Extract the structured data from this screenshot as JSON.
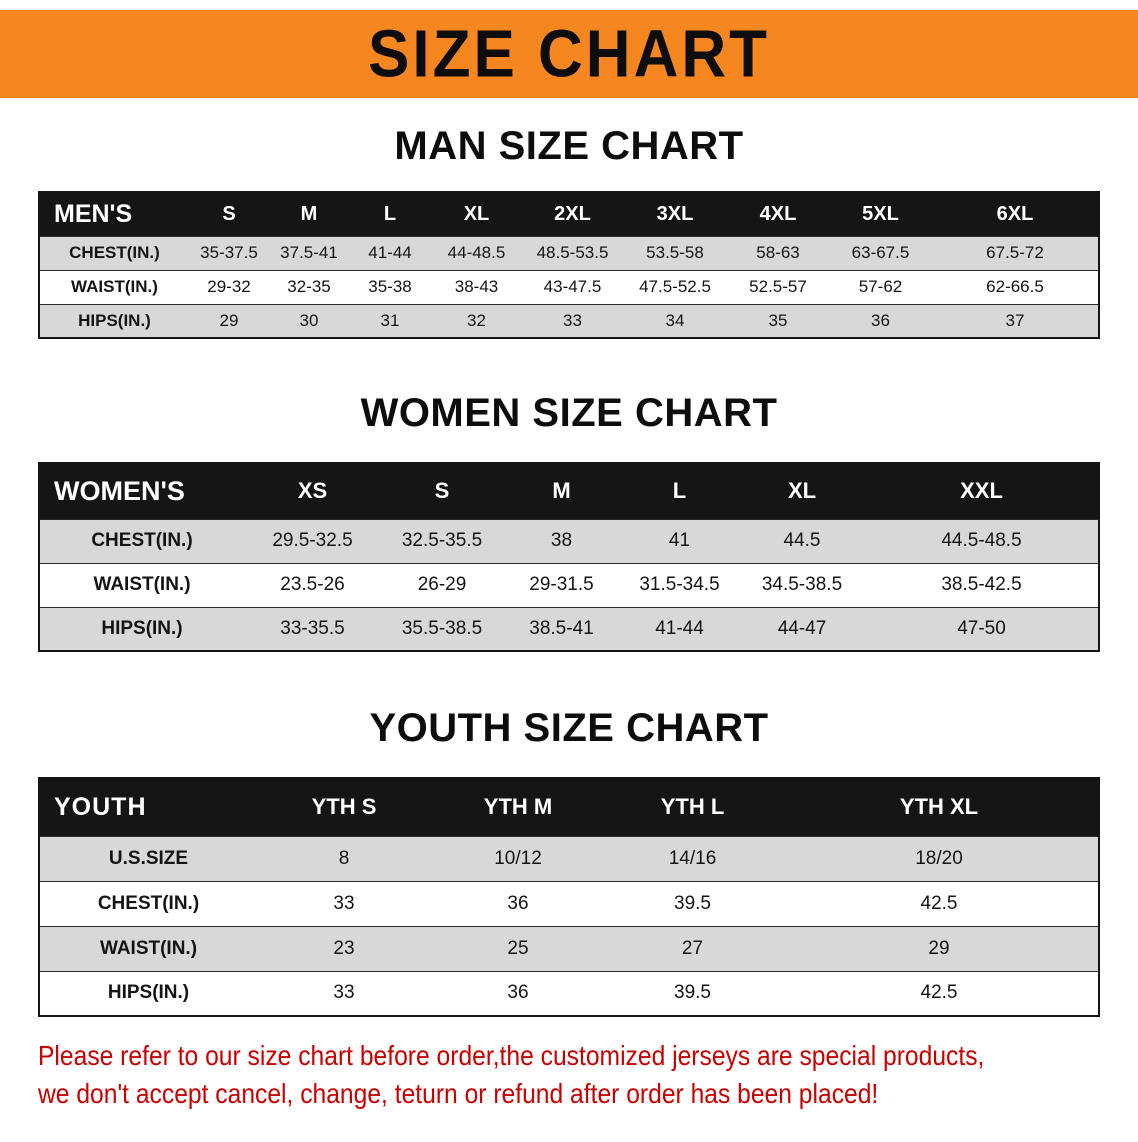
{
  "banner": {
    "title": "SIZE CHART"
  },
  "sections": [
    {
      "heading": "MAN SIZE CHART",
      "table": {
        "header": [
          "MEN'S",
          "S",
          "M",
          "L",
          "XL",
          "2XL",
          "3XL",
          "4XL",
          "5XL",
          "6XL"
        ],
        "rows": [
          [
            "CHEST(IN.)",
            "35-37.5",
            "37.5-41",
            "41-44",
            "44-48.5",
            "48.5-53.5",
            "53.5-58",
            "58-63",
            "63-67.5",
            "67.5-72"
          ],
          [
            "WAIST(IN.)",
            "29-32",
            "32-35",
            "35-38",
            "38-43",
            "43-47.5",
            "47.5-52.5",
            "52.5-57",
            "57-62",
            "62-66.5"
          ],
          [
            "HIPS(IN.)",
            "29",
            "30",
            "31",
            "32",
            "33",
            "34",
            "35",
            "36",
            "37"
          ]
        ]
      }
    },
    {
      "heading": "WOMEN SIZE CHART",
      "table": {
        "header": [
          "WOMEN'S",
          "XS",
          "S",
          "M",
          "L",
          "XL",
          "XXL"
        ],
        "rows": [
          [
            "CHEST(IN.)",
            "29.5-32.5",
            "32.5-35.5",
            "38",
            "41",
            "44.5",
            "44.5-48.5"
          ],
          [
            "WAIST(IN.)",
            "23.5-26",
            "26-29",
            "29-31.5",
            "31.5-34.5",
            "34.5-38.5",
            "38.5-42.5"
          ],
          [
            "HIPS(IN.)",
            "33-35.5",
            "35.5-38.5",
            "38.5-41",
            "41-44",
            "44-47",
            "47-50"
          ]
        ]
      }
    },
    {
      "heading": "YOUTH SIZE CHART",
      "table": {
        "header": [
          "YOUTH",
          "YTH S",
          "YTH M",
          "YTH L",
          "YTH XL"
        ],
        "rows": [
          [
            "U.S.SIZE",
            "8",
            "10/12",
            "14/16",
            "18/20"
          ],
          [
            "CHEST(IN.)",
            "33",
            "36",
            "39.5",
            "42.5"
          ],
          [
            "WAIST(IN.)",
            "23",
            "25",
            "27",
            "29"
          ],
          [
            "HIPS(IN.)",
            "33",
            "36",
            "39.5",
            "42.5"
          ]
        ]
      }
    }
  ],
  "footnote": {
    "line1": "Please refer to our size chart before order,the customized jerseys are special products,",
    "line2": "we don't accept cancel, change, teturn or refund after order has been placed!"
  },
  "colors": {
    "banner_bg": "#f6861f",
    "header_bg": "#151515",
    "row_alt_bg": "#d8d8d8",
    "note_red": "#c40000"
  }
}
